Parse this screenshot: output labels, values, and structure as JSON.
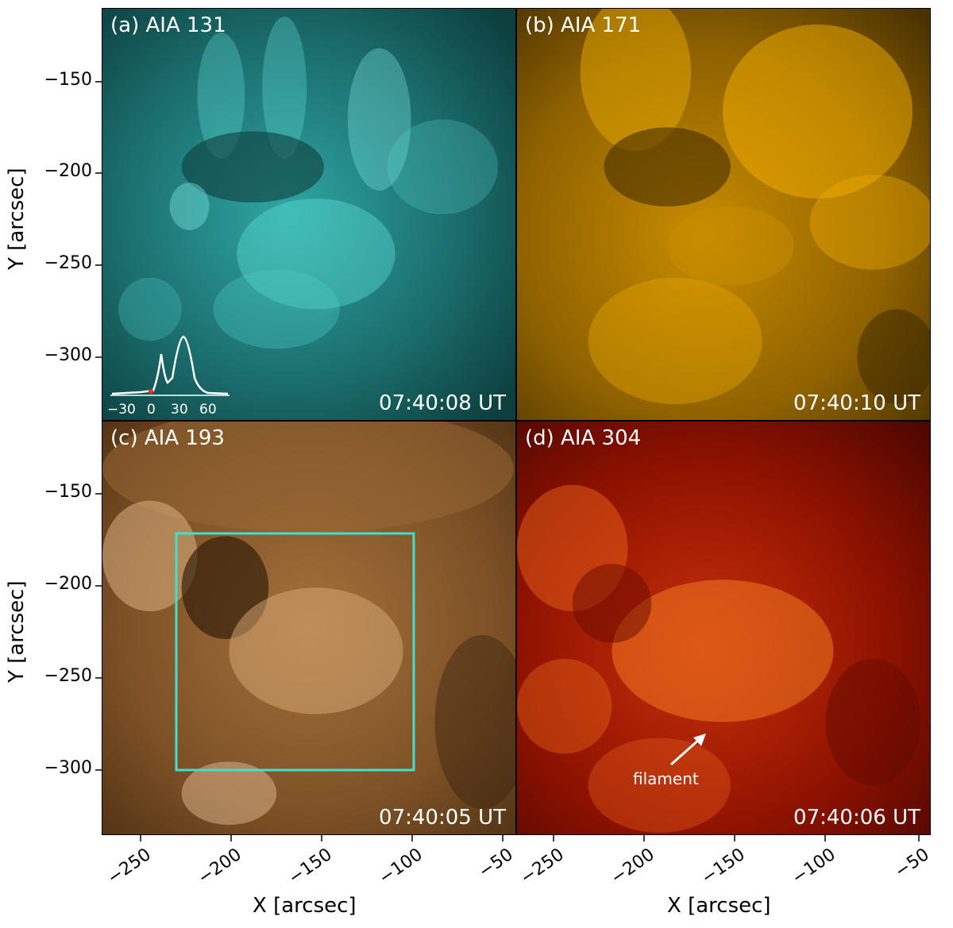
{
  "panels": [
    {
      "label": "(a) AIA 131",
      "time": "07:40:08 UT",
      "color": "#1fb3b0"
    },
    {
      "label": "(b) AIA 171",
      "time": "07:40:10 UT",
      "color": "#d99a00"
    },
    {
      "label": "(c) AIA 193",
      "time": "07:40:05 UT",
      "color": "#8a5a26"
    },
    {
      "label": "(d) AIA 304",
      "time": "07:40:06 UT",
      "color": "#b01a00"
    }
  ],
  "axes": {
    "ylabel": "Y [arcsec]",
    "xlabel": "X [arcsec]",
    "yticks": [
      "−150",
      "−200",
      "−250",
      "−300"
    ],
    "xticks": [
      "−250",
      "−200",
      "−150",
      "−100",
      "−50"
    ]
  },
  "inset": {
    "xticks": [
      "−30",
      "0",
      "30",
      "60"
    ]
  },
  "annotation": {
    "filament": "filament",
    "box_color": "#40e0d0"
  }
}
